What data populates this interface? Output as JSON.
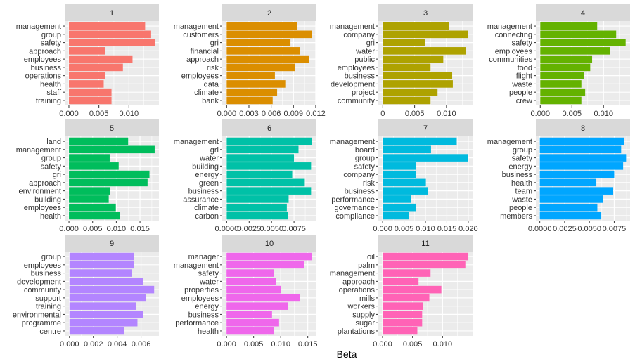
{
  "figure": {
    "xlabel": "Beta",
    "panel_background": "#ebebeb",
    "strip_background": "#d9d9d9",
    "grid_color": "#ffffff"
  },
  "chart_data": [
    {
      "type": "bar",
      "orientation": "horizontal",
      "title": "1",
      "color": "#F8766D",
      "categories": [
        "management",
        "group",
        "safety",
        "approach",
        "employees",
        "business",
        "operations",
        "health",
        "staff",
        "training"
      ],
      "values": [
        0.0127,
        0.0137,
        0.0143,
        0.006,
        0.0106,
        0.009,
        0.006,
        0.0058,
        0.0071,
        0.0071
      ],
      "xlim": [
        -0.0007,
        0.015
      ],
      "ticks": [
        0,
        0.005,
        0.01
      ],
      "tick_labels": [
        "0.000",
        "0.005",
        "0.010"
      ]
    },
    {
      "type": "bar",
      "orientation": "horizontal",
      "title": "2",
      "color": "#DB8E00",
      "categories": [
        "management",
        "customers",
        "gri",
        "financial",
        "approach",
        "risk",
        "employees",
        "data",
        "climate",
        "bank"
      ],
      "values": [
        0.0095,
        0.0115,
        0.0086,
        0.0099,
        0.0111,
        0.0092,
        0.0065,
        0.0079,
        0.0068,
        0.0062
      ],
      "xlim": [
        -0.0006,
        0.0121
      ],
      "ticks": [
        0,
        0.003,
        0.006,
        0.009,
        0.012
      ],
      "tick_labels": [
        "0.000",
        "0.003",
        "0.006",
        "0.009",
        "0.012"
      ]
    },
    {
      "type": "bar",
      "orientation": "horizontal",
      "title": "3",
      "color": "#AEA200",
      "categories": [
        "management",
        "company",
        "gri",
        "water",
        "public",
        "employees",
        "business",
        "development",
        "project",
        "community"
      ],
      "values": [
        0.0104,
        0.0134,
        0.0066,
        0.013,
        0.0095,
        0.0075,
        0.0109,
        0.011,
        0.0086,
        0.0075
      ],
      "xlim": [
        -0.0007,
        0.0141
      ],
      "ticks": [
        0,
        0.005,
        0.01
      ],
      "tick_labels": [
        "0",
        "0.005",
        "0.010"
      ]
    },
    {
      "type": "bar",
      "orientation": "horizontal",
      "title": "4",
      "color": "#64B200",
      "categories": [
        "management",
        "connecting",
        "safety",
        "employees",
        "communities",
        "food",
        "flight",
        "waste",
        "people",
        "crew"
      ],
      "values": [
        0.009,
        0.012,
        0.0135,
        0.011,
        0.0082,
        0.0079,
        0.0069,
        0.0065,
        0.0071,
        0.0065
      ],
      "xlim": [
        -0.0007,
        0.0142
      ],
      "ticks": [
        0,
        0.005,
        0.01
      ],
      "tick_labels": [
        "0.000",
        "0.005",
        "0.010"
      ]
    },
    {
      "type": "bar",
      "orientation": "horizontal",
      "title": "5",
      "color": "#00BD5C",
      "categories": [
        "land",
        "management",
        "group",
        "safety",
        "gri",
        "approach",
        "environment",
        "building",
        "employees",
        "health"
      ],
      "values": [
        0.0125,
        0.0181,
        0.0086,
        0.0105,
        0.017,
        0.0166,
        0.0087,
        0.0084,
        0.0099,
        0.0107
      ],
      "xlim": [
        -0.0009,
        0.019
      ],
      "ticks": [
        0,
        0.005,
        0.01,
        0.015
      ],
      "tick_labels": [
        "0.000",
        "0.005",
        "0.010",
        "0.015"
      ]
    },
    {
      "type": "bar",
      "orientation": "horizontal",
      "title": "6",
      "color": "#00C1A7",
      "categories": [
        "management",
        "gri",
        "water",
        "building",
        "energy",
        "green",
        "business",
        "assurance",
        "climate",
        "carbon"
      ],
      "values": [
        0.0095,
        0.008,
        0.0075,
        0.0094,
        0.0073,
        0.0087,
        0.0094,
        0.0069,
        0.0067,
        0.0068
      ],
      "xlim": [
        -0.0005,
        0.01
      ],
      "ticks": [
        0,
        0.0025,
        0.005,
        0.0075
      ],
      "tick_labels": [
        "0.0000",
        "0.0025",
        "0.0050",
        "0.0075"
      ]
    },
    {
      "type": "bar",
      "orientation": "horizontal",
      "title": "7",
      "color": "#00BADE",
      "categories": [
        "management",
        "board",
        "group",
        "safety",
        "company",
        "risk",
        "business",
        "performance",
        "governance",
        "compliance"
      ],
      "values": [
        0.0173,
        0.0113,
        0.02,
        0.0077,
        0.0077,
        0.0101,
        0.0105,
        0.0067,
        0.0077,
        0.0062
      ],
      "xlim": [
        -0.001,
        0.021
      ],
      "ticks": [
        0,
        0.005,
        0.01,
        0.015,
        0.02
      ],
      "tick_labels": [
        "0.000",
        "0.005",
        "0.010",
        "0.015",
        "0.020"
      ]
    },
    {
      "type": "bar",
      "orientation": "horizontal",
      "title": "8",
      "color": "#00A6FF",
      "categories": [
        "management",
        "group",
        "safety",
        "energy",
        "business",
        "health",
        "team",
        "waste",
        "people",
        "members"
      ],
      "values": [
        0.0085,
        0.0082,
        0.0087,
        0.0084,
        0.0075,
        0.0057,
        0.0074,
        0.0064,
        0.0058,
        0.0062
      ],
      "xlim": [
        -0.0004,
        0.0091
      ],
      "ticks": [
        0,
        0.0025,
        0.005,
        0.0075
      ],
      "tick_labels": [
        "0.0000",
        "0.0025",
        "0.0050",
        "0.0075"
      ]
    },
    {
      "type": "bar",
      "orientation": "horizontal",
      "title": "9",
      "color": "#B385FF",
      "categories": [
        "group",
        "employees",
        "business",
        "development",
        "community",
        "support",
        "training",
        "environmental",
        "programme",
        "centre"
      ],
      "values": [
        0.0054,
        0.0054,
        0.0052,
        0.0062,
        0.0071,
        0.0064,
        0.0056,
        0.0062,
        0.0057,
        0.0046
      ],
      "xlim": [
        -0.0004,
        0.0075
      ],
      "ticks": [
        0,
        0.002,
        0.004,
        0.006
      ],
      "tick_labels": [
        "0.000",
        "0.002",
        "0.004",
        "0.006"
      ]
    },
    {
      "type": "bar",
      "orientation": "horizontal",
      "title": "10",
      "color": "#EF67EB",
      "categories": [
        "manager",
        "management",
        "safety",
        "water",
        "properties",
        "employees",
        "energy",
        "business",
        "performance",
        "health"
      ],
      "values": [
        0.0158,
        0.0143,
        0.0088,
        0.0092,
        0.01,
        0.0136,
        0.0113,
        0.0084,
        0.0097,
        0.0087
      ],
      "xlim": [
        -0.0008,
        0.0166
      ],
      "ticks": [
        0,
        0.005,
        0.01,
        0.015
      ],
      "tick_labels": [
        "0.000",
        "0.005",
        "0.010",
        "0.015"
      ]
    },
    {
      "type": "bar",
      "orientation": "horizontal",
      "title": "11",
      "color": "#FF63B6",
      "categories": [
        "oil",
        "palm",
        "management",
        "approach",
        "operations",
        "mills",
        "workers",
        "supply",
        "sugar",
        "plantations"
      ],
      "values": [
        0.0143,
        0.0138,
        0.008,
        0.006,
        0.0098,
        0.0078,
        0.0067,
        0.0066,
        0.0066,
        0.0058
      ],
      "xlim": [
        -0.0007,
        0.015
      ],
      "ticks": [
        0,
        0.005,
        0.01
      ],
      "tick_labels": [
        "0.000",
        "0.005",
        "0.010"
      ]
    }
  ]
}
